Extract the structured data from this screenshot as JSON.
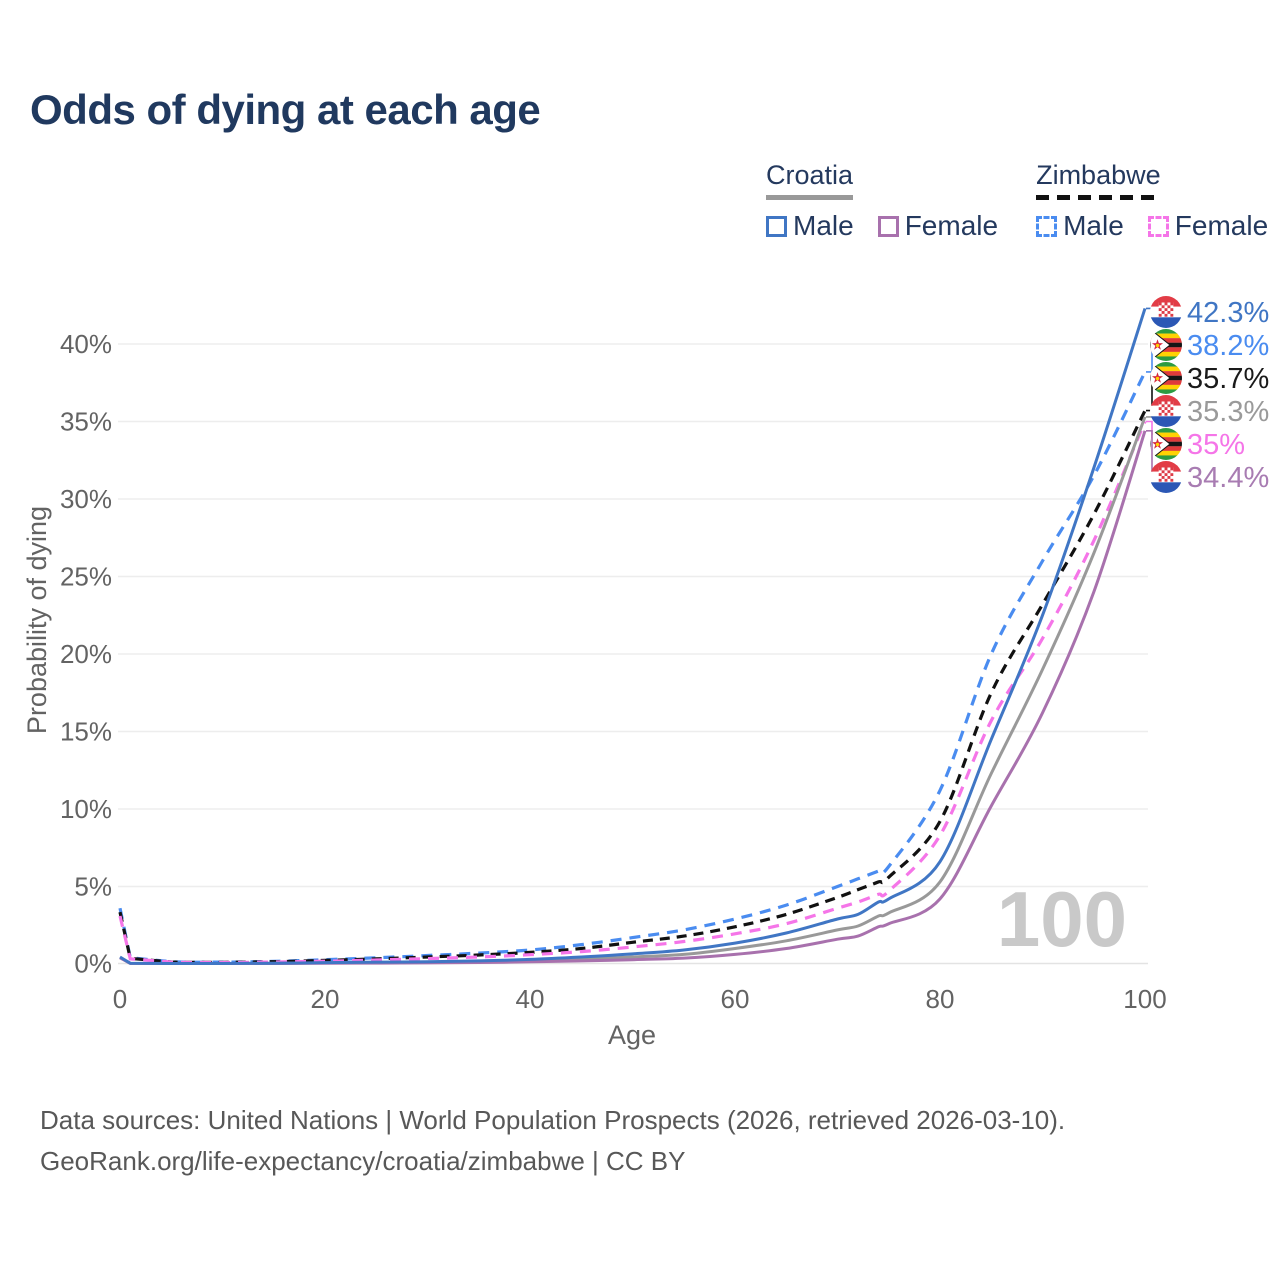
{
  "title": "Odds of dying at each age",
  "legend": {
    "groups": [
      {
        "name": "Croatia",
        "line_style": "solid",
        "overall_color": "#999999",
        "items": [
          {
            "label": "Male",
            "color": "#4076c4",
            "dashed": false
          },
          {
            "label": "Female",
            "color": "#a871ad",
            "dashed": false
          }
        ]
      },
      {
        "name": "Zimbabwe",
        "line_style": "dashed",
        "overall_color": "#111111",
        "items": [
          {
            "label": "Male",
            "color": "#4a8cf0",
            "dashed": true
          },
          {
            "label": "Female",
            "color": "#f575e8",
            "dashed": true
          }
        ]
      }
    ]
  },
  "chart_data": {
    "type": "line",
    "title": "Odds of dying at each age",
    "xlabel": "Age",
    "ylabel": "Probability of dying",
    "unit": "percent",
    "xlim": [
      0,
      100
    ],
    "ylim": [
      0,
      43
    ],
    "xticks": [
      0,
      20,
      40,
      60,
      80,
      100
    ],
    "ytick_values": [
      0,
      5,
      10,
      15,
      20,
      25,
      30,
      35,
      40
    ],
    "ytick_labels": [
      "0%",
      "5%",
      "10%",
      "15%",
      "20%",
      "25%",
      "30%",
      "35%",
      "40%"
    ],
    "grid": "horizontal",
    "watermark": "100",
    "x": [
      0,
      1,
      5,
      10,
      15,
      20,
      25,
      30,
      35,
      40,
      45,
      50,
      55,
      60,
      65,
      70,
      72,
      74,
      75,
      80,
      85,
      90,
      95,
      100
    ],
    "series": [
      {
        "name": "Zimbabwe Male",
        "country": "Zimbabwe",
        "sex": "male",
        "color": "#4a8cf0",
        "dashed": true,
        "dash": "11 8",
        "flag": "zimbabwe",
        "end_label": "38.2%",
        "label_color": "#4a8cf0",
        "values": [
          3.6,
          0.4,
          0.15,
          0.12,
          0.17,
          0.28,
          0.4,
          0.55,
          0.7,
          0.9,
          1.25,
          1.7,
          2.2,
          2.9,
          3.8,
          5.0,
          5.5,
          6.0,
          6.3,
          11.2,
          20.0,
          26.0,
          31.5,
          38.2
        ]
      },
      {
        "name": "Zimbabwe Overall",
        "country": "Zimbabwe",
        "sex": "overall",
        "color": "#111111",
        "dashed": true,
        "dash": "10 7",
        "flag": "zimbabwe",
        "end_label": "35.7%",
        "label_color": "#1a1a1a",
        "values": [
          3.35,
          0.36,
          0.13,
          0.11,
          0.15,
          0.23,
          0.33,
          0.45,
          0.58,
          0.75,
          1.0,
          1.4,
          1.8,
          2.4,
          3.2,
          4.3,
          4.8,
          5.3,
          5.6,
          9.2,
          17.5,
          23.2,
          29.0,
          35.7
        ]
      },
      {
        "name": "Zimbabwe Female",
        "country": "Zimbabwe",
        "sex": "female",
        "color": "#f575e8",
        "dashed": true,
        "dash": "11 8",
        "flag": "zimbabwe",
        "end_label": "35%",
        "label_color": "#f575e8",
        "values": [
          3.1,
          0.33,
          0.12,
          0.1,
          0.13,
          0.18,
          0.26,
          0.35,
          0.45,
          0.6,
          0.8,
          1.1,
          1.45,
          1.95,
          2.6,
          3.6,
          4.0,
          4.5,
          4.7,
          8.3,
          15.7,
          21.0,
          27.3,
          35.0
        ]
      },
      {
        "name": "Croatia Overall",
        "country": "Croatia",
        "sex": "overall",
        "color": "#999999",
        "dashed": false,
        "dash": "",
        "flag": "croatia",
        "end_label": "35.3%",
        "label_color": "#9a9a9a",
        "values": [
          0.42,
          0.04,
          0.02,
          0.02,
          0.04,
          0.07,
          0.09,
          0.11,
          0.15,
          0.22,
          0.32,
          0.45,
          0.62,
          1.0,
          1.5,
          2.2,
          2.45,
          3.1,
          3.3,
          5.3,
          12.3,
          19.0,
          26.5,
          35.3
        ]
      },
      {
        "name": "Croatia Female",
        "country": "Croatia",
        "sex": "female",
        "color": "#a871ad",
        "dashed": false,
        "dash": "",
        "flag": "croatia",
        "end_label": "34.4%",
        "label_color": "#a87cb2",
        "values": [
          0.4,
          0.04,
          0.01,
          0.01,
          0.03,
          0.05,
          0.06,
          0.07,
          0.1,
          0.14,
          0.2,
          0.28,
          0.38,
          0.62,
          1.0,
          1.6,
          1.8,
          2.4,
          2.6,
          4.2,
          10.2,
          16.2,
          24.0,
          34.4
        ]
      },
      {
        "name": "Croatia Male",
        "country": "Croatia",
        "sex": "male",
        "color": "#4076c4",
        "dashed": false,
        "dash": "",
        "flag": "croatia",
        "end_label": "42.3%",
        "label_color": "#4076c4",
        "values": [
          0.45,
          0.05,
          0.02,
          0.02,
          0.05,
          0.09,
          0.12,
          0.15,
          0.2,
          0.3,
          0.45,
          0.65,
          0.9,
          1.35,
          2.0,
          2.9,
          3.2,
          4.0,
          4.2,
          6.6,
          14.5,
          22.5,
          32.0,
          42.3
        ]
      }
    ]
  },
  "footer": {
    "line1": "Data sources: United Nations | World Population Prospects (2026, retrieved 2026-03-10).",
    "line2": "GeoRank.org/life-expectancy/croatia/zimbabwe | CC BY"
  }
}
